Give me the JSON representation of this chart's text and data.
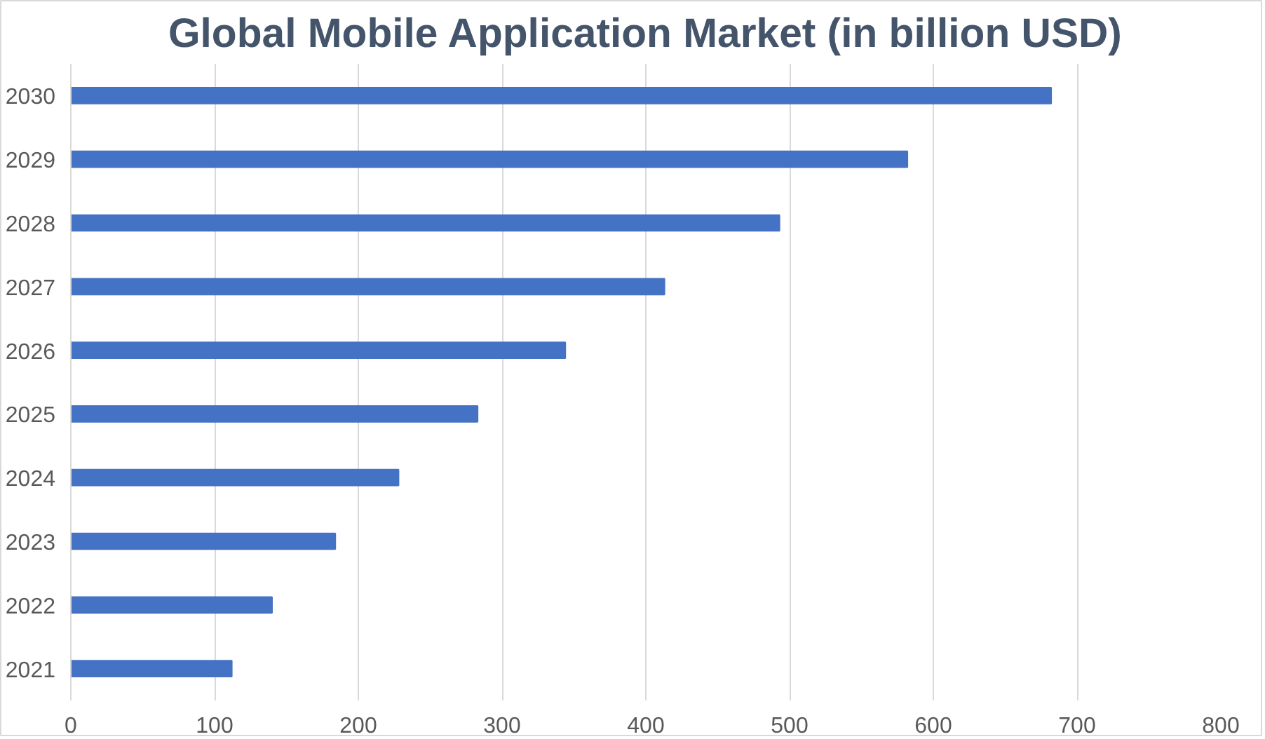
{
  "chart_data": {
    "type": "bar",
    "orientation": "horizontal",
    "title": "Global Mobile Application Market (in billion USD)",
    "categories": [
      "2030",
      "2029",
      "2028",
      "2027",
      "2026",
      "2025",
      "2024",
      "2023",
      "2022",
      "2021"
    ],
    "values": [
      682,
      582,
      493,
      413,
      344,
      283,
      228,
      184,
      140,
      112
    ],
    "color": "#4472c4",
    "xlim": [
      0,
      800
    ],
    "xticks": [
      0,
      100,
      200,
      300,
      400,
      500,
      600,
      700,
      800
    ],
    "grid": "x"
  }
}
